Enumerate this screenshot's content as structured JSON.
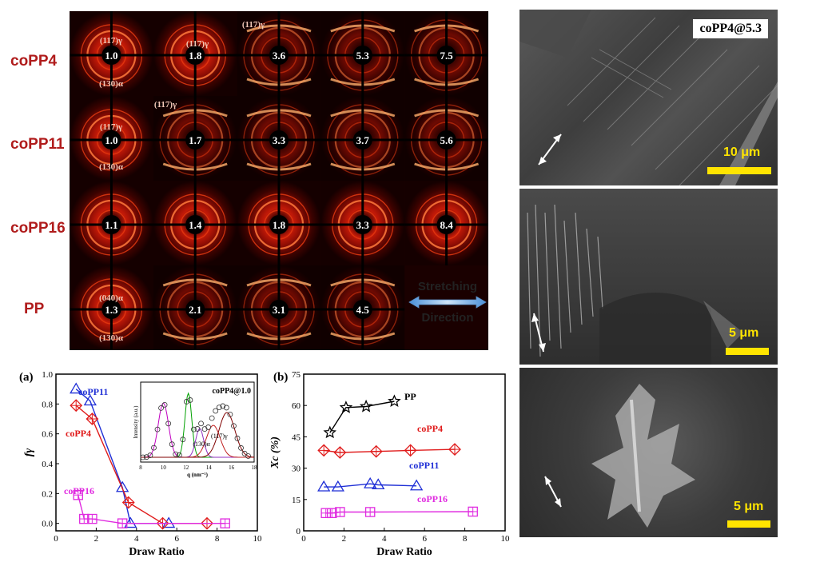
{
  "saxs_panel": {
    "row_labels": [
      "coPP4",
      "coPP11",
      "coPP16",
      "PP"
    ],
    "draw_ratios": [
      [
        "1.0",
        "1.8",
        "3.6",
        "5.3",
        "7.5"
      ],
      [
        "1.0",
        "1.7",
        "3.3",
        "3.7",
        "5.6"
      ],
      [
        "1.1",
        "1.4",
        "1.8",
        "3.3",
        "8.4"
      ],
      [
        "1.3",
        "2.1",
        "3.1",
        "4.5"
      ]
    ],
    "annotations": {
      "r0c0_top": "(117)γ",
      "r0c0_bottom": "(130)α",
      "r0c1": "(117)γ",
      "r0c2": "(117)γ",
      "r1c0_top": "(117)γ",
      "r1c0_bottom": "(130)α",
      "r1c1": "(117)γ",
      "r3c0_top": "(040)α",
      "r3c0_bottom": "(130)α"
    },
    "stretch_label_line1": "Stretching",
    "stretch_label_line2": "Direction"
  },
  "sem_panel": {
    "label_top": "coPP4@5.3",
    "scale_top": "10 μm",
    "scale_middle": "5 μm",
    "scale_bottom": "5 μm"
  },
  "chart_data": [
    {
      "type": "line",
      "panel": "(a)",
      "xlabel": "Draw Ratio",
      "ylabel": "fγ",
      "xlim": [
        0,
        10
      ],
      "ylim": [
        -0.05,
        1.0
      ],
      "xticks": [
        0,
        2,
        4,
        6,
        8,
        10
      ],
      "yticks": [
        0.0,
        0.2,
        0.4,
        0.6,
        0.8,
        1.0
      ],
      "series": [
        {
          "name": "coPP11",
          "color": "#1f2fd6",
          "marker": "triangle",
          "x": [
            1.0,
            1.7,
            3.3,
            3.7,
            5.6
          ],
          "y": [
            0.9,
            0.82,
            0.24,
            0.0,
            0.0
          ]
        },
        {
          "name": "coPP4",
          "color": "#e01b1b",
          "marker": "diamond",
          "x": [
            1.0,
            1.8,
            3.6,
            5.3,
            7.5
          ],
          "y": [
            0.79,
            0.7,
            0.14,
            0.0,
            0.0
          ]
        },
        {
          "name": "coPP16",
          "color": "#e02be0",
          "marker": "square",
          "x": [
            1.1,
            1.4,
            1.8,
            3.3,
            8.4
          ],
          "y": [
            0.19,
            0.03,
            0.03,
            0.0,
            0.0
          ]
        }
      ],
      "inset": {
        "label": "coPP4@1.0",
        "xlabel": "q (nm⁻¹)",
        "ylabel": "Intensity (a.u.)",
        "xticks": [
          8,
          10,
          12,
          14,
          16,
          18
        ],
        "peak_labels": [
          "(117)γ",
          "(130)α"
        ]
      }
    },
    {
      "type": "line",
      "panel": "(b)",
      "xlabel": "Draw Ratio",
      "ylabel": "Xc (%)",
      "xlim": [
        0,
        10
      ],
      "ylim": [
        0,
        75
      ],
      "xticks": [
        0,
        2,
        4,
        6,
        8,
        10
      ],
      "yticks": [
        0,
        15,
        30,
        45,
        60,
        75
      ],
      "series": [
        {
          "name": "PP",
          "color": "#000000",
          "marker": "star",
          "x": [
            1.3,
            2.1,
            3.1,
            4.5
          ],
          "y": [
            47,
            59,
            59.5,
            62
          ]
        },
        {
          "name": "coPP4",
          "color": "#e01b1b",
          "marker": "diamond",
          "x": [
            1.0,
            1.8,
            3.6,
            5.3,
            7.5
          ],
          "y": [
            38.5,
            37.5,
            38,
            38.5,
            39
          ]
        },
        {
          "name": "coPP11",
          "color": "#1f2fd6",
          "marker": "triangle",
          "x": [
            1.0,
            1.7,
            3.3,
            3.7,
            5.6
          ],
          "y": [
            21,
            21,
            22.5,
            22,
            21.5
          ]
        },
        {
          "name": "coPP16",
          "color": "#e02be0",
          "marker": "square",
          "x": [
            1.1,
            1.4,
            1.8,
            3.3,
            8.4
          ],
          "y": [
            8.5,
            8.5,
            9,
            9,
            9.2
          ]
        }
      ]
    }
  ]
}
